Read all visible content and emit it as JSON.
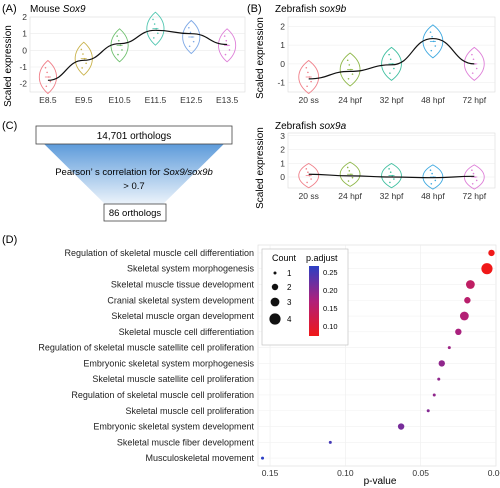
{
  "panels": {
    "A": {
      "label": "(A)",
      "title_plain": "Mouse ",
      "title_italic": "Sox9",
      "ylabel": "Scaled expression",
      "yticks": [
        "2",
        "1",
        "0",
        "-1",
        "-2"
      ],
      "colors": [
        "#f0808a",
        "#c9b24a",
        "#6dbf6d",
        "#4fc6b0",
        "#7da8e6",
        "#de7fd8"
      ],
      "chart_data": {
        "type": "violin",
        "categories": [
          "E8.5",
          "E9.5",
          "E10.5",
          "E11.5",
          "E12.5",
          "E13.5"
        ],
        "medians": [
          -1.6,
          -0.5,
          0.3,
          1.3,
          0.8,
          0.3
        ],
        "trend": [
          -1.8,
          -0.6,
          0.4,
          1.2,
          1.0,
          0.35
        ],
        "ylim": [
          -2.5,
          2.0
        ],
        "grid": true
      }
    },
    "B1": {
      "label": "(B)",
      "title_plain": "Zebrafish ",
      "title_italic": "sox9b",
      "ylabel": "Scaled expression",
      "yticks": [
        "2",
        "1",
        "0",
        "-1"
      ],
      "colors": [
        "#f0808a",
        "#8fb84a",
        "#3fbfa0",
        "#3fa9e0",
        "#de7fd8"
      ],
      "chart_data": {
        "type": "violin",
        "categories": [
          "20 ss",
          "24 hpf",
          "32 hpf",
          "48 hpf",
          "72 hpf"
        ],
        "medians": [
          -0.7,
          -0.3,
          0.0,
          1.2,
          0.0
        ],
        "trend": [
          -0.8,
          -0.4,
          -0.05,
          1.35,
          0.0
        ],
        "ylim": [
          -1.5,
          2.5
        ],
        "grid": true
      }
    },
    "B2": {
      "title_plain": "Zebrafish ",
      "title_italic": "sox9a",
      "ylabel": "Scaled expression",
      "yticks": [
        "3",
        "2",
        "1",
        "0"
      ],
      "colors": [
        "#f0808a",
        "#8fb84a",
        "#3fbfa0",
        "#3fa9e0",
        "#de7fd8"
      ],
      "chart_data": {
        "type": "violin",
        "categories": [
          "20 ss",
          "24 hpf",
          "32 hpf",
          "48 hpf",
          "72 hpf"
        ],
        "medians": [
          0.1,
          0.2,
          0.1,
          0.0,
          0.0
        ],
        "trend": [
          0.2,
          0.08,
          0.0,
          -0.05,
          0.05
        ],
        "ylim": [
          -0.8,
          3.2
        ],
        "grid": true
      }
    },
    "C": {
      "label": "(C)",
      "top_box": "14,701 orthologs",
      "text_plain1": "Pearson’ s correlation for ",
      "text_italic": "Sox9/sox9b",
      "text_line2": "> 0.7",
      "bottom_box": "86 orthologs"
    },
    "D": {
      "label": "(D)",
      "xlabel": "p-value",
      "xticks": [
        "0.15",
        "0.10",
        "0.05",
        "0.00"
      ],
      "legend_count_title": "Count",
      "legend_count_items": [
        "1",
        "2",
        "3",
        "4"
      ],
      "legend_padj_title": "p.adjust",
      "legend_padj_ticks": [
        "0.25",
        "0.20",
        "0.15",
        "0.10"
      ],
      "chart_data": {
        "type": "dot",
        "x_reversed": true,
        "xlim": [
          0.158,
          0.0
        ],
        "terms": [
          {
            "name": "Regulation of skeletal muscle cell differentiation",
            "pvalue": 0.003,
            "count": 2,
            "p_adjust": 0.07
          },
          {
            "name": "Skeletal system morphogenesis",
            "pvalue": 0.006,
            "count": 4,
            "p_adjust": 0.07
          },
          {
            "name": "Skeletal muscle tissue development",
            "pvalue": 0.017,
            "count": 3,
            "p_adjust": 0.15
          },
          {
            "name": "Cranial skeletal system development",
            "pvalue": 0.019,
            "count": 2,
            "p_adjust": 0.16
          },
          {
            "name": "Skeletal muscle organ development",
            "pvalue": 0.021,
            "count": 3,
            "p_adjust": 0.17
          },
          {
            "name": "Skeletal muscle cell differentiation",
            "pvalue": 0.025,
            "count": 2,
            "p_adjust": 0.18
          },
          {
            "name": "Regulation of skeletal muscle satellite cell proliferation",
            "pvalue": 0.031,
            "count": 1,
            "p_adjust": 0.19
          },
          {
            "name": "Embryonic skeletal system morphogenesis",
            "pvalue": 0.036,
            "count": 2,
            "p_adjust": 0.2
          },
          {
            "name": "Skeletal muscle satellite cell proliferation",
            "pvalue": 0.038,
            "count": 1,
            "p_adjust": 0.2
          },
          {
            "name": "Regulation of skeletal muscle cell proliferation",
            "pvalue": 0.041,
            "count": 1,
            "p_adjust": 0.2
          },
          {
            "name": "Skeletal muscle cell proliferation",
            "pvalue": 0.045,
            "count": 1,
            "p_adjust": 0.21
          },
          {
            "name": "Embryonic skeletal system development",
            "pvalue": 0.063,
            "count": 2,
            "p_adjust": 0.22
          },
          {
            "name": "Skeletal muscle fiber development",
            "pvalue": 0.11,
            "count": 1,
            "p_adjust": 0.26
          },
          {
            "name": "Musculoskeletal movement",
            "pvalue": 0.155,
            "count": 1,
            "p_adjust": 0.28
          }
        ]
      }
    }
  }
}
